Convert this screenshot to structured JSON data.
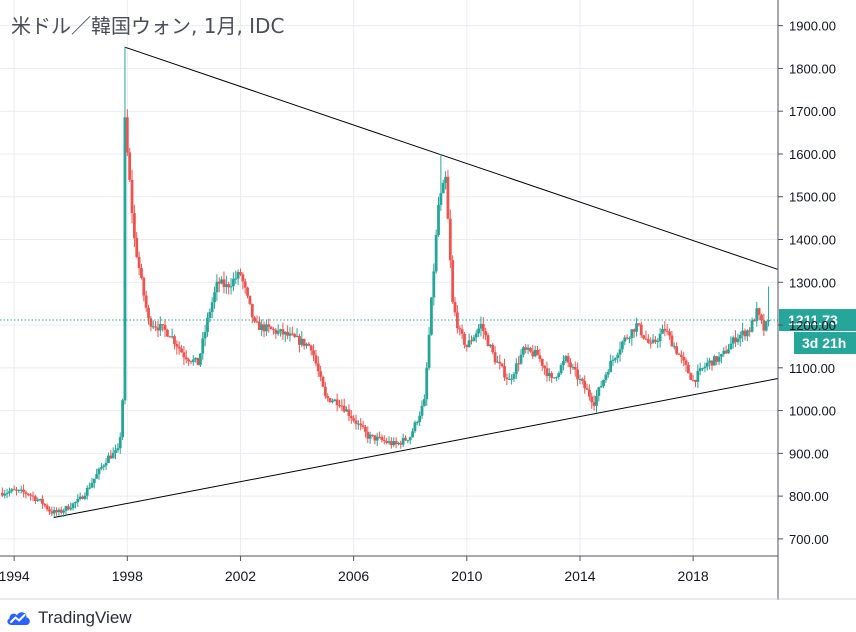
{
  "title": "米ドル／韓国ウォン, 1月, IDC",
  "brand": {
    "name": "TradingView",
    "icon": "tradingview-cloud-icon"
  },
  "colors": {
    "up": "#26a69a",
    "down": "#ef5350",
    "price_line": "#26a69a",
    "trendline": "#000000",
    "grid": "#e9ecf2"
  },
  "chart_data": {
    "type": "candlestick",
    "x_axis_ticks": [
      "1994",
      "1998",
      "2002",
      "2006",
      "2010",
      "2014",
      "2018"
    ],
    "y_axis_ticks": [
      "700.00",
      "800.00",
      "900.00",
      "1000.00",
      "1100.00",
      "1200.00",
      "1300.00",
      "1400.00",
      "1500.00",
      "1600.00",
      "1700.00",
      "1800.00",
      "1900.00"
    ],
    "ylim": [
      660,
      1960
    ],
    "xlim": [
      1993.5,
      2021.0
    ],
    "last_price": "1211.73",
    "last_price_value": 1211.73,
    "countdown": "3d 21h",
    "closes": [
      [
        1993.5,
        808
      ],
      [
        1994.0,
        812
      ],
      [
        1994.5,
        806
      ],
      [
        1995.0,
        784
      ],
      [
        1995.3,
        763
      ],
      [
        1995.6,
        762
      ],
      [
        1995.9,
        774
      ],
      [
        1996.3,
        790
      ],
      [
        1996.6,
        817
      ],
      [
        1997.0,
        858
      ],
      [
        1997.3,
        890
      ],
      [
        1997.7,
        906
      ],
      [
        1997.83,
        1000
      ],
      [
        1997.92,
        1700
      ],
      [
        1998.0,
        1600
      ],
      [
        1998.25,
        1400
      ],
      [
        1998.5,
        1300
      ],
      [
        1998.75,
        1210
      ],
      [
        1999.0,
        1200
      ],
      [
        1999.5,
        1180
      ],
      [
        2000.0,
        1130
      ],
      [
        2000.5,
        1110
      ],
      [
        2000.9,
        1230
      ],
      [
        2001.2,
        1300
      ],
      [
        2001.5,
        1290
      ],
      [
        2002.0,
        1320
      ],
      [
        2002.5,
        1200
      ],
      [
        2003.0,
        1190
      ],
      [
        2003.5,
        1180
      ],
      [
        2004.0,
        1165
      ],
      [
        2004.5,
        1150
      ],
      [
        2005.0,
        1030
      ],
      [
        2005.5,
        1020
      ],
      [
        2006.0,
        980
      ],
      [
        2006.5,
        940
      ],
      [
        2007.0,
        930
      ],
      [
        2007.5,
        920
      ],
      [
        2008.0,
        940
      ],
      [
        2008.5,
        1020
      ],
      [
        2008.8,
        1300
      ],
      [
        2009.0,
        1480
      ],
      [
        2009.25,
        1540
      ],
      [
        2009.5,
        1250
      ],
      [
        2009.75,
        1180
      ],
      [
        2010.0,
        1150
      ],
      [
        2010.5,
        1200
      ],
      [
        2011.0,
        1120
      ],
      [
        2011.5,
        1070
      ],
      [
        2012.0,
        1140
      ],
      [
        2012.5,
        1130
      ],
      [
        2013.0,
        1070
      ],
      [
        2013.5,
        1120
      ],
      [
        2014.0,
        1070
      ],
      [
        2014.5,
        1020
      ],
      [
        2015.0,
        1100
      ],
      [
        2015.5,
        1160
      ],
      [
        2016.0,
        1200
      ],
      [
        2016.5,
        1150
      ],
      [
        2017.0,
        1190
      ],
      [
        2017.5,
        1130
      ],
      [
        2018.0,
        1070
      ],
      [
        2018.5,
        1110
      ],
      [
        2019.0,
        1125
      ],
      [
        2019.5,
        1170
      ],
      [
        2020.0,
        1190
      ],
      [
        2020.25,
        1230
      ],
      [
        2020.5,
        1190
      ],
      [
        2020.7,
        1211.73
      ]
    ],
    "trendlines": [
      {
        "from": [
          1997.9,
          1850
        ],
        "to": [
          2021.0,
          1330
        ]
      },
      {
        "from": [
          1995.4,
          750
        ],
        "to": [
          2021.0,
          1075
        ]
      }
    ]
  }
}
